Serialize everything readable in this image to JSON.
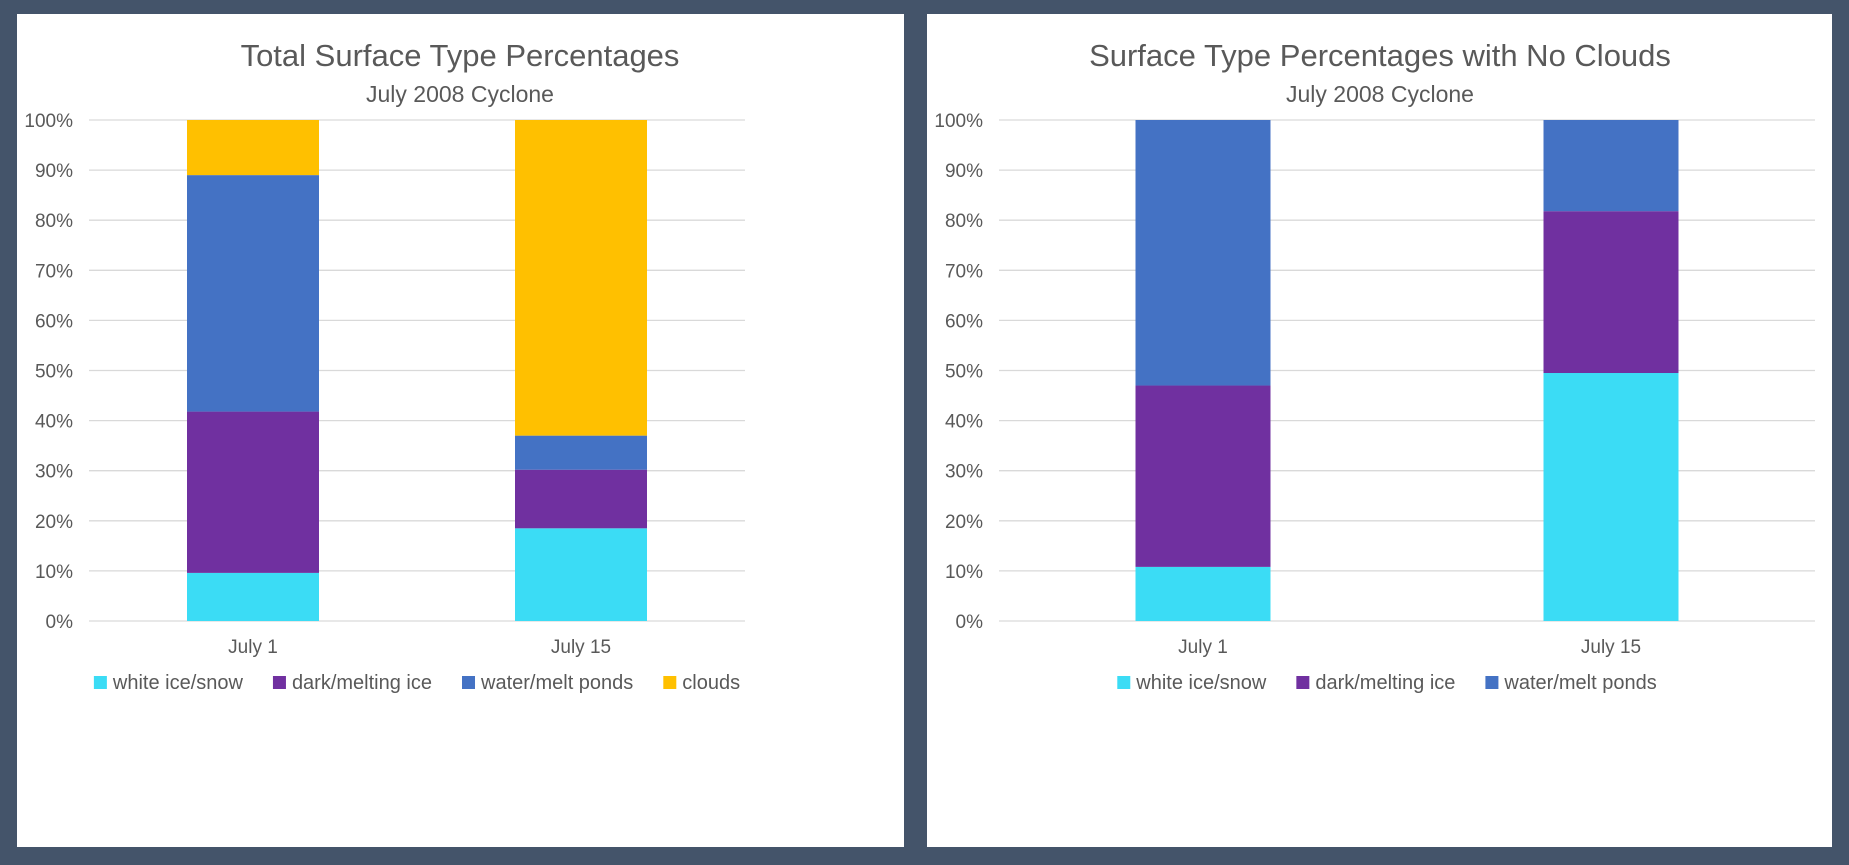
{
  "chart_data": [
    {
      "type": "bar",
      "stacked": true,
      "title": "Total Surface Type Percentages",
      "subtitle": "July 2008 Cyclone",
      "categories": [
        "July 1",
        "July 15"
      ],
      "y_ticks": [
        "0%",
        "10%",
        "20%",
        "30%",
        "40%",
        "50%",
        "60%",
        "70%",
        "80%",
        "90%",
        "100%"
      ],
      "ylim": [
        0,
        100
      ],
      "grid": true,
      "legend_position": "bottom",
      "series": [
        {
          "name": "white ice/snow",
          "color": "#3bdcf5",
          "values": [
            9.6,
            18.5
          ]
        },
        {
          "name": "dark/melting ice",
          "color": "#7030a0",
          "values": [
            32.2,
            11.7
          ]
        },
        {
          "name": "water/melt ponds",
          "color": "#4472c4",
          "values": [
            47.2,
            6.8
          ]
        },
        {
          "name": "clouds",
          "color": "#ffc000",
          "values": [
            11.0,
            63.0
          ]
        }
      ]
    },
    {
      "type": "bar",
      "stacked": true,
      "title": "Surface Type Percentages with No Clouds",
      "subtitle": "July 2008 Cyclone",
      "categories": [
        "July 1",
        "July 15"
      ],
      "y_ticks": [
        "0%",
        "10%",
        "20%",
        "30%",
        "40%",
        "50%",
        "60%",
        "70%",
        "80%",
        "90%",
        "100%"
      ],
      "ylim": [
        0,
        100
      ],
      "grid": true,
      "legend_position": "bottom",
      "series": [
        {
          "name": "white ice/snow",
          "color": "#3bdcf5",
          "values": [
            10.8,
            49.5
          ]
        },
        {
          "name": "dark/melting ice",
          "color": "#7030a0",
          "values": [
            36.2,
            32.3
          ]
        },
        {
          "name": "water/melt ponds",
          "color": "#4472c4",
          "values": [
            53.0,
            18.2
          ]
        }
      ]
    }
  ]
}
